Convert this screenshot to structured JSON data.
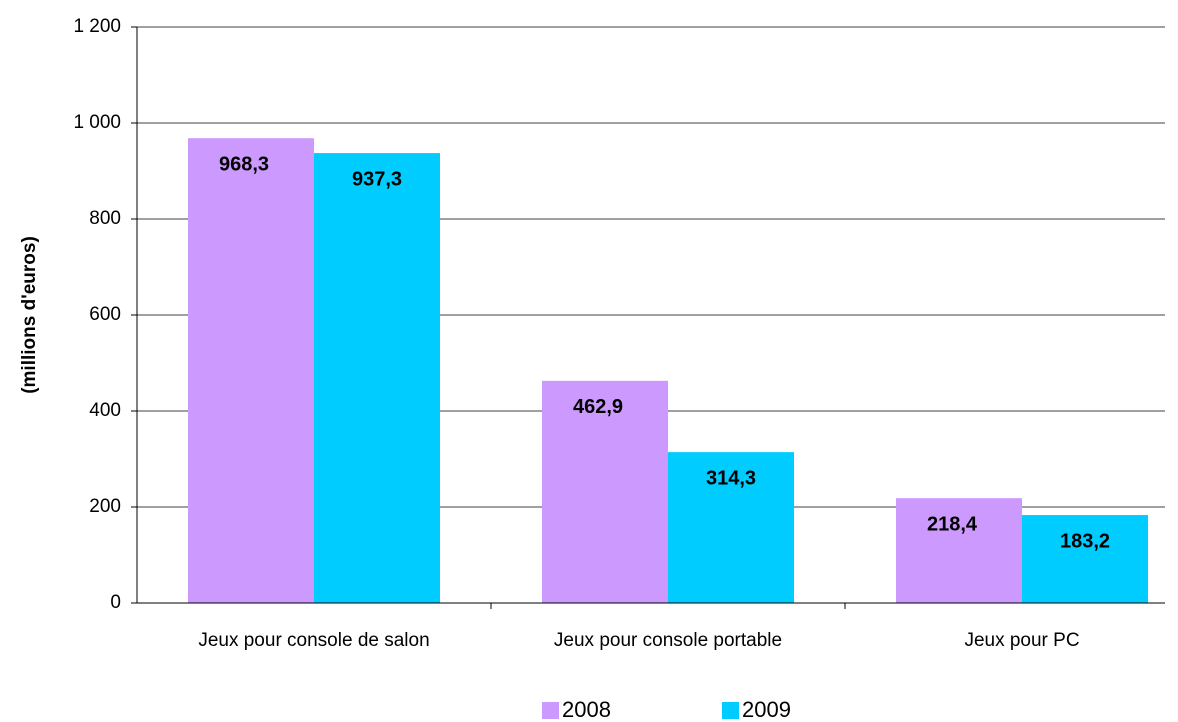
{
  "chart_data": {
    "type": "bar",
    "y_label": "(millions d'euros)",
    "categories": [
      "Jeux pour console de salon",
      "Jeux pour console portable",
      "Jeux pour PC"
    ],
    "series": [
      {
        "name": "2008",
        "color": "#cc99ff",
        "values": [
          968.3,
          462.9,
          218.4
        ],
        "value_labels": [
          "968,3",
          "462,9",
          "218,4"
        ]
      },
      {
        "name": "2009",
        "color": "#00ccff",
        "values": [
          937.3,
          314.3,
          183.2
        ],
        "value_labels": [
          "937,3",
          "314,3",
          "183,2"
        ]
      }
    ],
    "ylim": [
      0,
      1200
    ],
    "yticks": [
      0,
      200,
      400,
      600,
      800,
      {
        "value": 1000,
        "label": "1 000"
      },
      {
        "value": 1200,
        "label": "1 200"
      }
    ],
    "grid": true,
    "legend": "bottom"
  }
}
